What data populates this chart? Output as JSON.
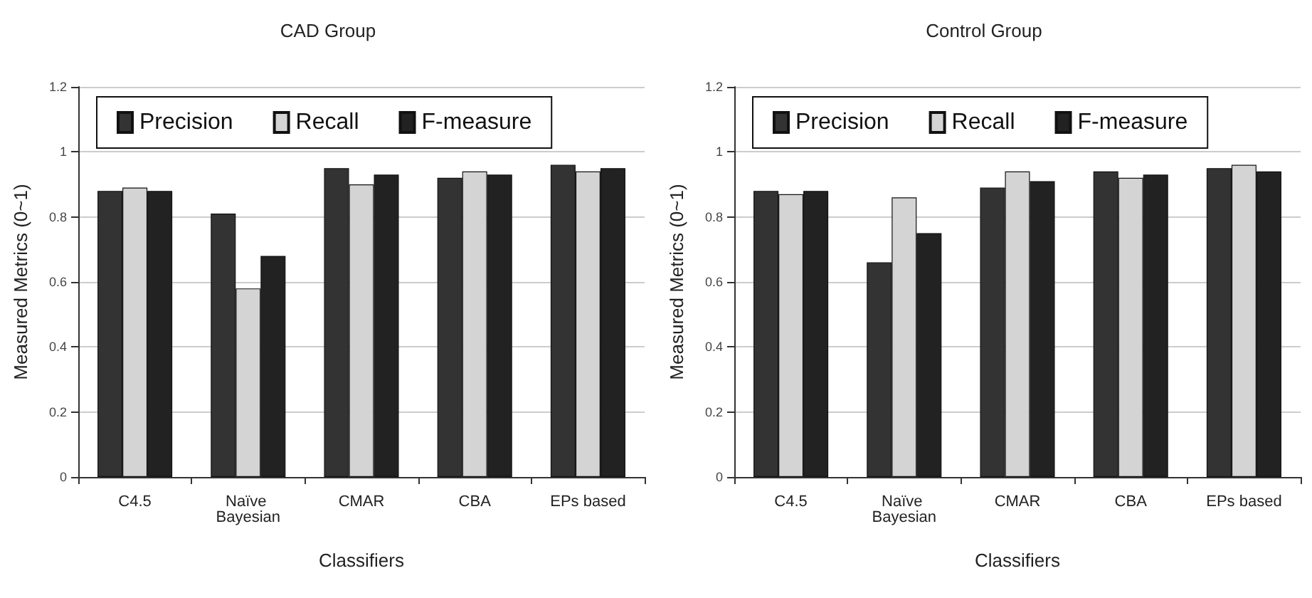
{
  "chart_data": [
    {
      "type": "bar",
      "title": "CAD Group",
      "xlabel": "Classifiers",
      "ylabel": "Measured Metrics (0~1)",
      "categories": [
        "C4.5",
        "Naïve Bayesian",
        "CMAR",
        "CBA",
        "EPs based"
      ],
      "series": [
        {
          "name": "Precision",
          "color": "#333333",
          "values": [
            0.88,
            0.81,
            0.95,
            0.92,
            0.96
          ]
        },
        {
          "name": "Recall",
          "color": "#d4d4d4",
          "values": [
            0.89,
            0.58,
            0.9,
            0.94,
            0.94
          ]
        },
        {
          "name": "F-measure",
          "color": "#222222",
          "values": [
            0.88,
            0.68,
            0.93,
            0.93,
            0.95
          ]
        }
      ],
      "ylim": [
        0,
        1.2
      ],
      "yticks": [
        0,
        0.2,
        0.4,
        0.6,
        0.8,
        1,
        1.2
      ],
      "grid": "y",
      "legend": "top left"
    },
    {
      "type": "bar",
      "title": "Control Group",
      "xlabel": "Classifiers",
      "ylabel": "Measured Metrics (0~1)",
      "categories": [
        "C4.5",
        "Naïve Bayesian",
        "CMAR",
        "CBA",
        "EPs based"
      ],
      "series": [
        {
          "name": "Precision",
          "color": "#333333",
          "values": [
            0.88,
            0.66,
            0.89,
            0.94,
            0.95
          ]
        },
        {
          "name": "Recall",
          "color": "#d4d4d4",
          "values": [
            0.87,
            0.86,
            0.94,
            0.92,
            0.96
          ]
        },
        {
          "name": "F-measure",
          "color": "#222222",
          "values": [
            0.88,
            0.75,
            0.91,
            0.93,
            0.94
          ]
        }
      ],
      "ylim": [
        0,
        1.2
      ],
      "yticks": [
        0,
        0.2,
        0.4,
        0.6,
        0.8,
        1,
        1.2
      ],
      "grid": "y",
      "legend": "top left"
    }
  ]
}
